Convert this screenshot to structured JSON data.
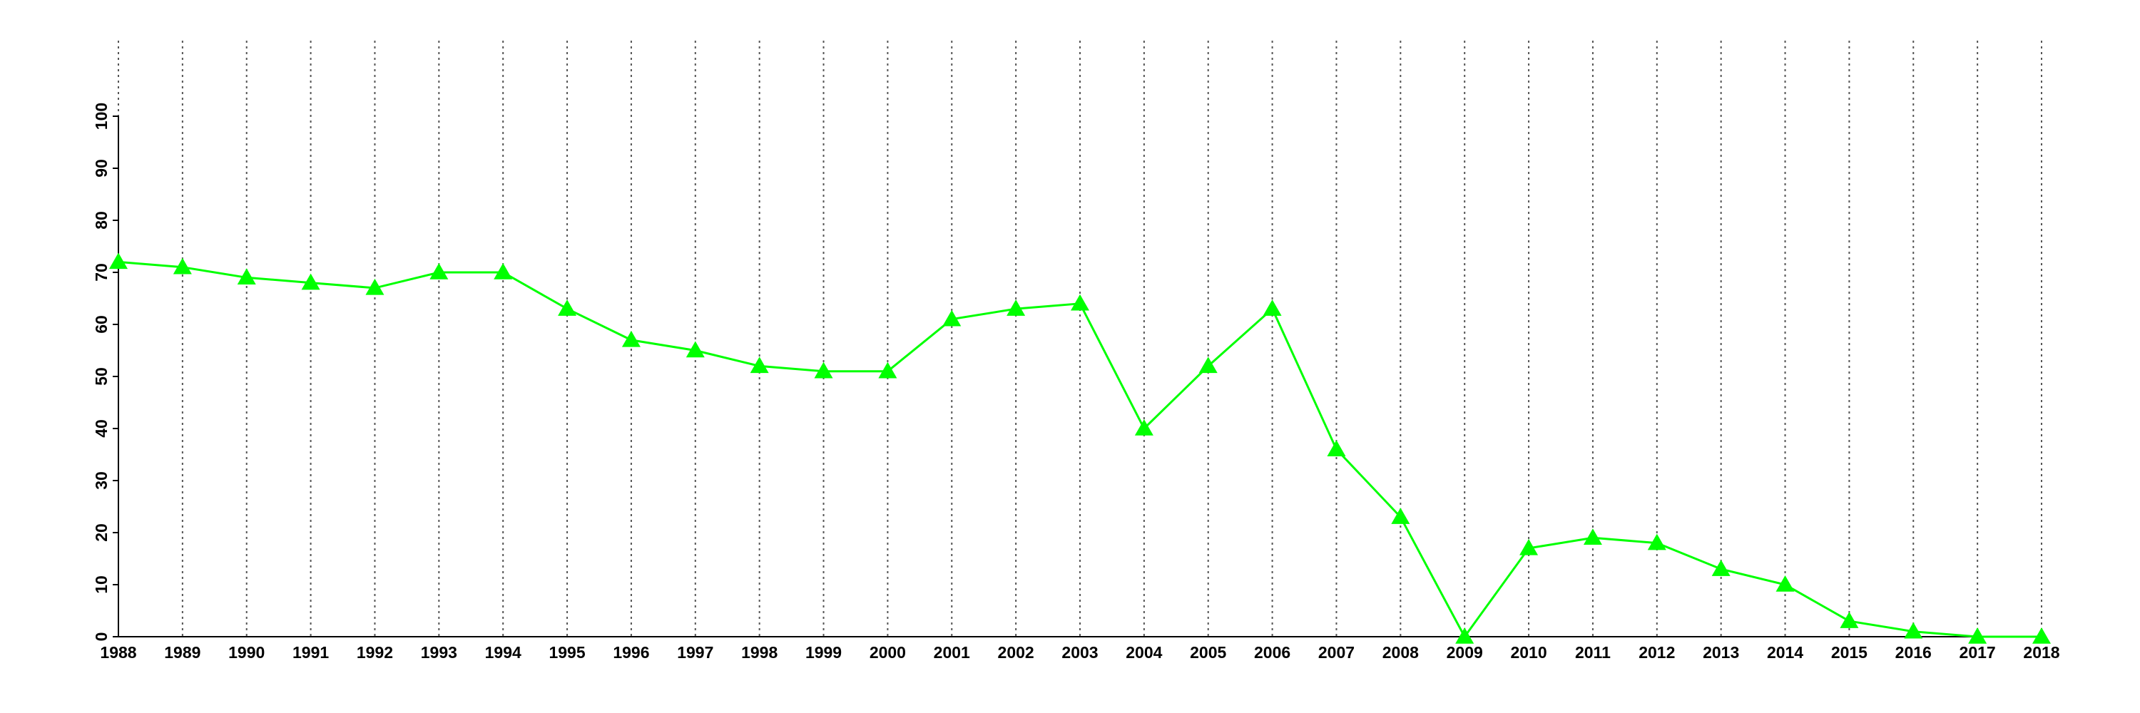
{
  "chart_data": {
    "type": "line",
    "x": [
      1988,
      1989,
      1990,
      1991,
      1992,
      1993,
      1994,
      1995,
      1996,
      1997,
      1998,
      1999,
      2000,
      2001,
      2002,
      2003,
      2004,
      2005,
      2006,
      2007,
      2008,
      2009,
      2010,
      2011,
      2012,
      2013,
      2014,
      2015,
      2016,
      2017,
      2018
    ],
    "series": [
      {
        "color": "#00ff00",
        "values": [
          72,
          71,
          69,
          68,
          67,
          70,
          70,
          63,
          57,
          55,
          52,
          51,
          51,
          61,
          63,
          64,
          40,
          52,
          63,
          36,
          23,
          0,
          17,
          19,
          18,
          13,
          10,
          3,
          1,
          0,
          0
        ]
      }
    ],
    "xlim": [
      1988,
      2018
    ],
    "xticks": [
      1988,
      1989,
      1990,
      1991,
      1992,
      1993,
      1994,
      1995,
      1996,
      1997,
      1998,
      1999,
      2000,
      2001,
      2002,
      2003,
      2004,
      2005,
      2006,
      2007,
      2008,
      2009,
      2010,
      2011,
      2012,
      2013,
      2014,
      2015,
      2016,
      2017,
      2018
    ],
    "ylim": [
      0,
      100
    ],
    "yticks": [
      0,
      10,
      20,
      30,
      40,
      50,
      60,
      70,
      80,
      90,
      100
    ],
    "grid": true,
    "marker": "triangle"
  }
}
